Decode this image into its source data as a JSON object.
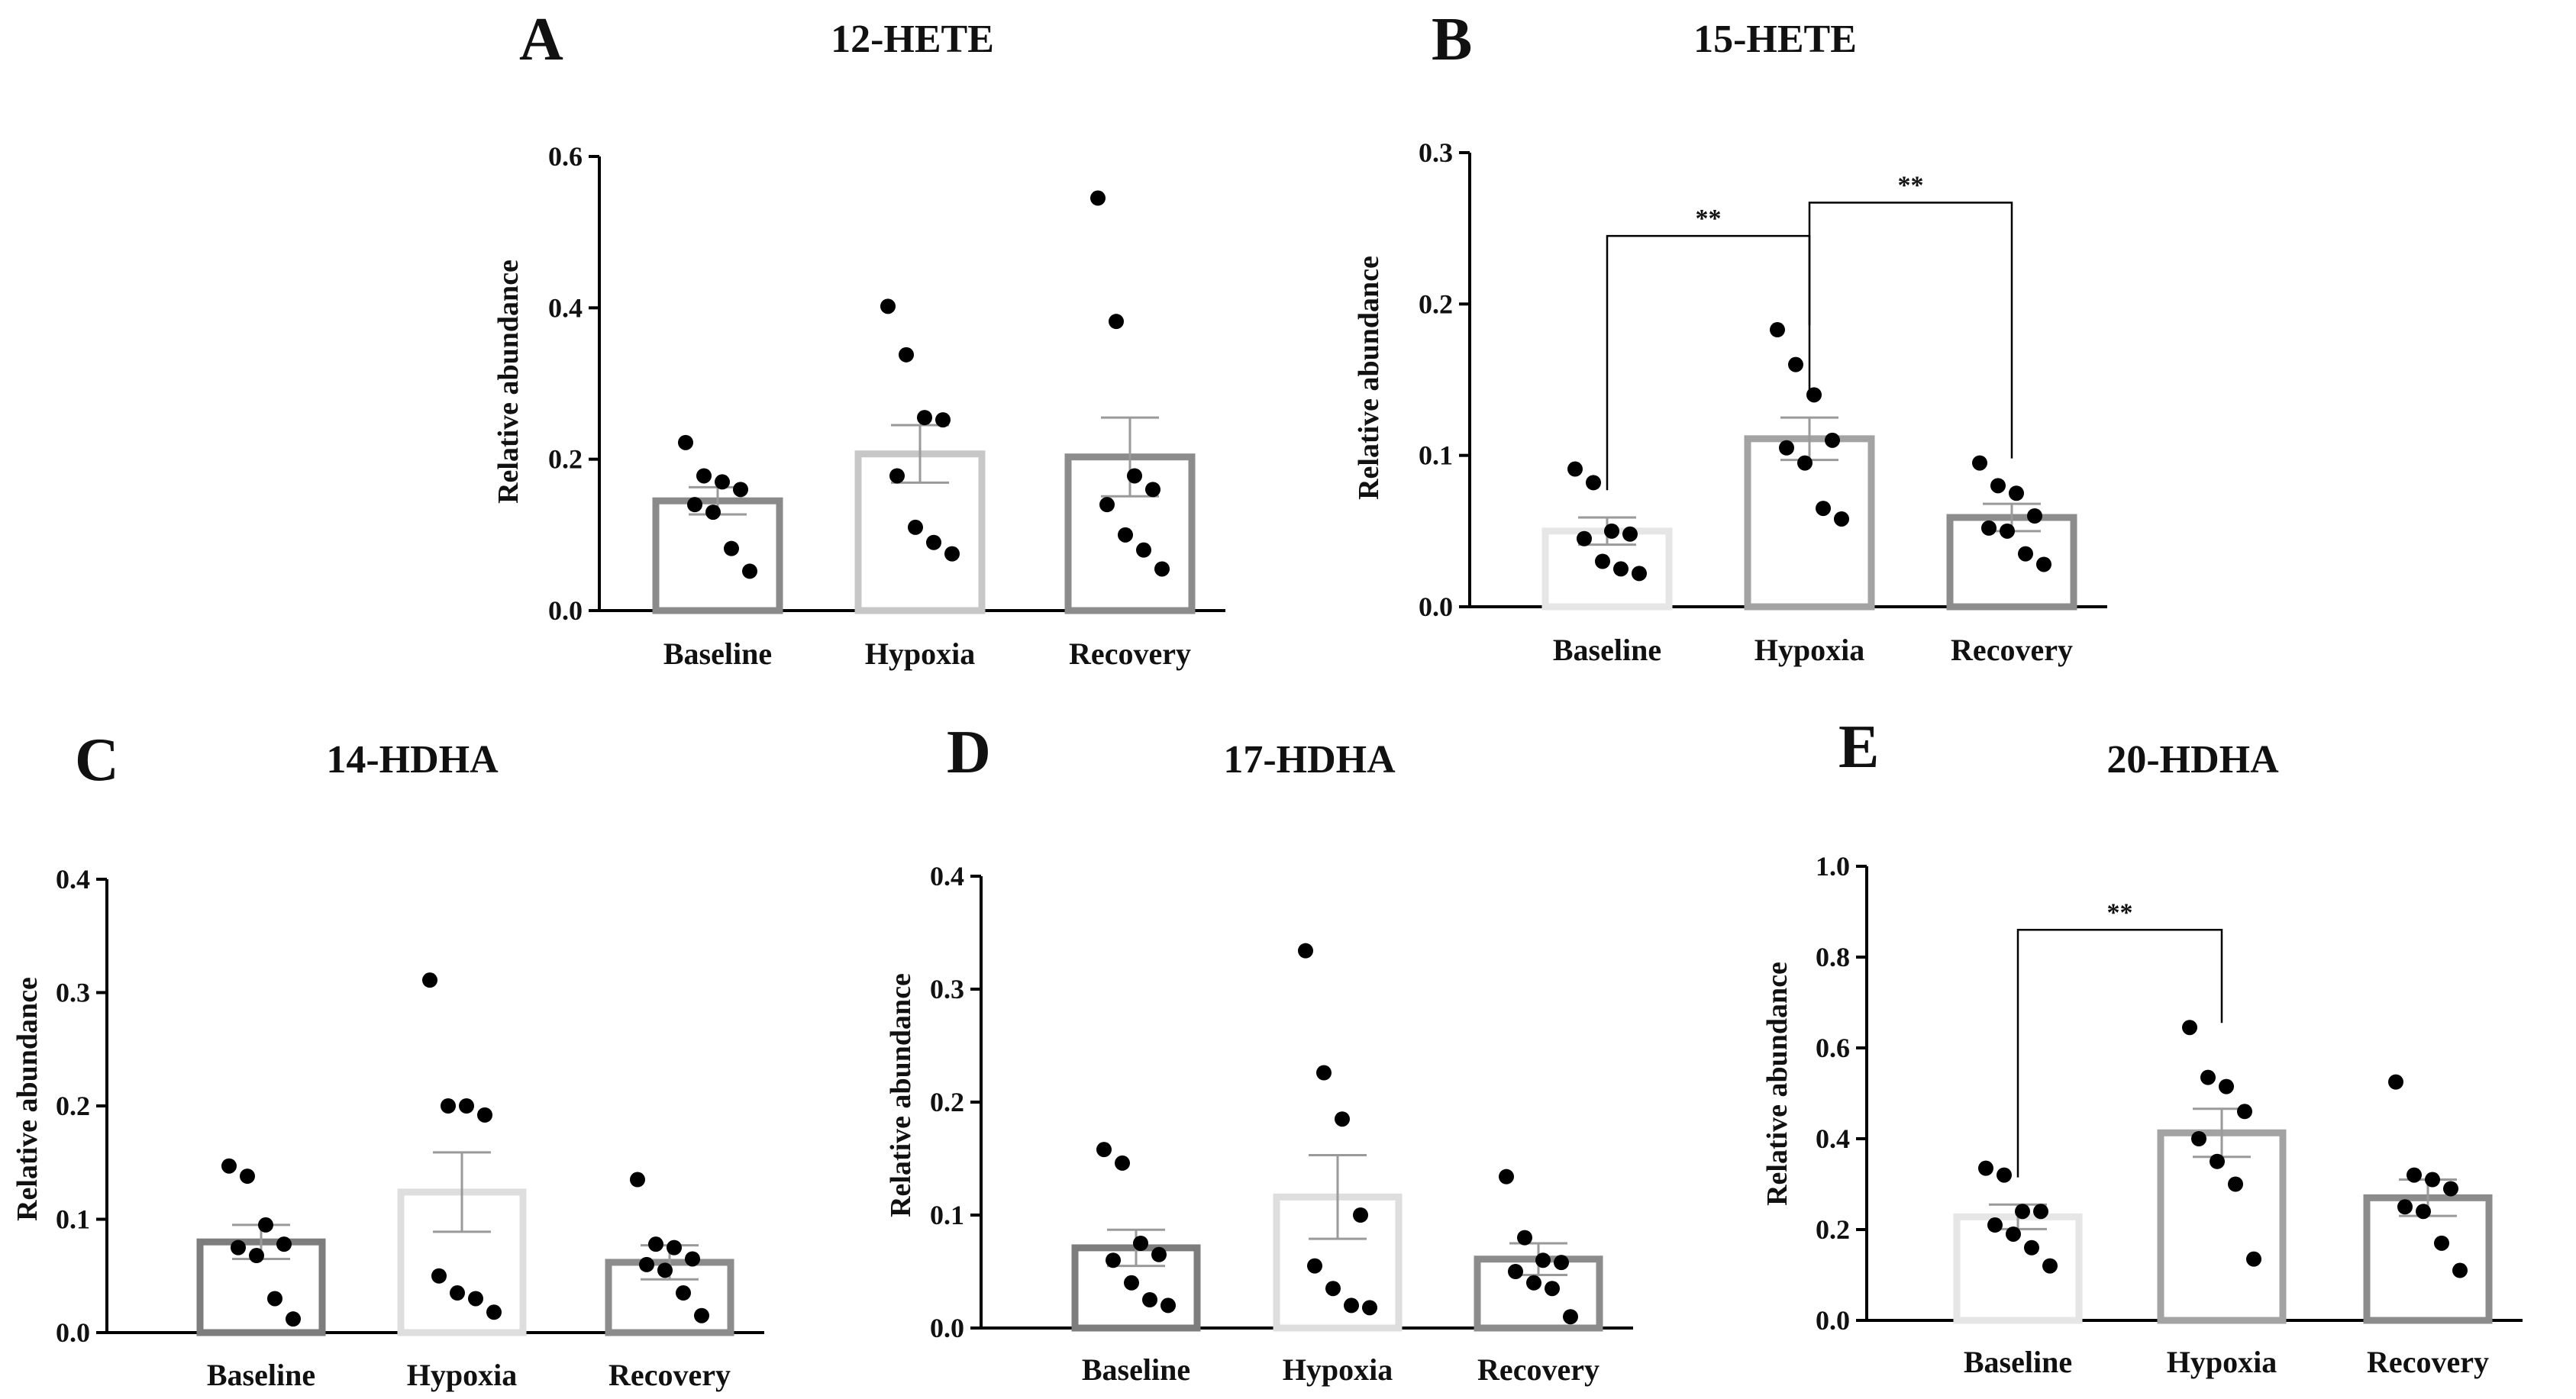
{
  "figure": {
    "colors": {
      "Baseline": "#8a8a8a",
      "Hypoxia": "#c7c7c7",
      "Recovery": "#8c8c8c",
      "point": "#000000",
      "axis": "#000000"
    }
  },
  "chart_data": [
    {
      "id": "A",
      "letter": "A",
      "title": "12-HETE",
      "type": "bar",
      "categories": [
        "Baseline",
        "Hypoxia",
        "Recovery"
      ],
      "ylabel": "Relative abundance",
      "ylim": [
        0,
        0.6
      ],
      "yticks": [
        0.0,
        0.2,
        0.4,
        0.6
      ],
      "ytick_labels": [
        "0.0",
        "0.2",
        "0.4",
        "0.6"
      ],
      "means": [
        0.145,
        0.207,
        0.203
      ],
      "sem": [
        0.018,
        0.038,
        0.052
      ],
      "points": [
        [
          0.222,
          0.178,
          0.17,
          0.16,
          0.14,
          0.13,
          0.082,
          0.052
        ],
        [
          0.402,
          0.338,
          0.255,
          0.252,
          0.178,
          0.11,
          0.09,
          0.075
        ],
        [
          0.545,
          0.382,
          0.178,
          0.16,
          0.14,
          0.1,
          0.08,
          0.055
        ]
      ],
      "bar_colors": [
        "#8a8a8a",
        "#c7c7c7",
        "#8c8c8c"
      ],
      "significance": []
    },
    {
      "id": "B",
      "letter": "B",
      "title": "15-HETE",
      "type": "bar",
      "categories": [
        "Baseline",
        "Hypoxia",
        "Recovery"
      ],
      "ylabel": "Relative abundance",
      "ylim": [
        0,
        0.3
      ],
      "yticks": [
        0.0,
        0.1,
        0.2,
        0.3
      ],
      "ytick_labels": [
        "0.0",
        "0.1",
        "0.2",
        "0.3"
      ],
      "means": [
        0.05,
        0.111,
        0.059
      ],
      "sem": [
        0.009,
        0.014,
        0.009
      ],
      "points": [
        [
          0.091,
          0.082,
          0.05,
          0.048,
          0.045,
          0.03,
          0.025,
          0.022
        ],
        [
          0.183,
          0.16,
          0.14,
          0.11,
          0.105,
          0.095,
          0.065,
          0.058
        ],
        [
          0.095,
          0.08,
          0.075,
          0.06,
          0.052,
          0.05,
          0.035,
          0.028
        ]
      ],
      "bar_colors": [
        "#e6e6e6",
        "#a3a3a3",
        "#8c8c8c"
      ],
      "significance": [
        {
          "from": 0,
          "to": 1,
          "y": 0.245,
          "label": "**"
        },
        {
          "from": 1,
          "to": 2,
          "y": 0.267,
          "label": "**"
        }
      ]
    },
    {
      "id": "C",
      "letter": "C",
      "title": "14-HDHA",
      "type": "bar",
      "categories": [
        "Baseline",
        "Hypoxia",
        "Recovery"
      ],
      "ylabel": "Relative abundance",
      "ylim": [
        0,
        0.4
      ],
      "yticks": [
        0.0,
        0.1,
        0.2,
        0.3,
        0.4
      ],
      "ytick_labels": [
        "0.0",
        "0.1",
        "0.2",
        "0.3",
        "0.4"
      ],
      "means": [
        0.08,
        0.124,
        0.062
      ],
      "sem": [
        0.015,
        0.035,
        0.015
      ],
      "points": [
        [
          0.147,
          0.138,
          0.095,
          0.078,
          0.075,
          0.068,
          0.03,
          0.012
        ],
        [
          0.311,
          0.2,
          0.2,
          0.192,
          0.05,
          0.035,
          0.03,
          0.018
        ],
        [
          0.135,
          0.078,
          0.075,
          0.065,
          0.06,
          0.055,
          0.035,
          0.015
        ]
      ],
      "bar_colors": [
        "#7d7d7d",
        "#dedede",
        "#8c8c8c"
      ],
      "significance": []
    },
    {
      "id": "D",
      "letter": "D",
      "title": "17-HDHA",
      "type": "bar",
      "categories": [
        "Baseline",
        "Hypoxia",
        "Recovery"
      ],
      "ylabel": "Relative abundance",
      "ylim": [
        0,
        0.4
      ],
      "yticks": [
        0.0,
        0.1,
        0.2,
        0.3,
        0.4
      ],
      "ytick_labels": [
        "0.0",
        "0.1",
        "0.2",
        "0.3",
        "0.4"
      ],
      "means": [
        0.071,
        0.116,
        0.061
      ],
      "sem": [
        0.016,
        0.037,
        0.014
      ],
      "points": [
        [
          0.158,
          0.146,
          0.075,
          0.065,
          0.06,
          0.04,
          0.025,
          0.02
        ],
        [
          0.334,
          0.226,
          0.185,
          0.1,
          0.055,
          0.035,
          0.02,
          0.018
        ],
        [
          0.134,
          0.08,
          0.06,
          0.058,
          0.05,
          0.04,
          0.035,
          0.01
        ]
      ],
      "bar_colors": [
        "#7d7d7d",
        "#dedede",
        "#8c8c8c"
      ],
      "significance": []
    },
    {
      "id": "E",
      "letter": "E",
      "title": "20-HDHA",
      "type": "bar",
      "categories": [
        "Baseline",
        "Hypoxia",
        "Recovery"
      ],
      "ylabel": "Relative abundance",
      "ylim": [
        0,
        1.0
      ],
      "yticks": [
        0.0,
        0.2,
        0.4,
        0.6,
        0.8,
        1.0
      ],
      "ytick_labels": [
        "0.0",
        "0.2",
        "0.4",
        "0.6",
        "0.8",
        "1.0"
      ],
      "means": [
        0.228,
        0.413,
        0.27
      ],
      "sem": [
        0.027,
        0.053,
        0.04
      ],
      "points": [
        [
          0.335,
          0.32,
          0.24,
          0.24,
          0.21,
          0.19,
          0.16,
          0.12
        ],
        [
          0.645,
          0.535,
          0.515,
          0.46,
          0.4,
          0.35,
          0.3,
          0.135
        ],
        [
          0.525,
          0.32,
          0.31,
          0.29,
          0.25,
          0.24,
          0.17,
          0.11
        ]
      ],
      "bar_colors": [
        "#e6e6e6",
        "#a3a3a3",
        "#8c8c8c"
      ],
      "significance": [
        {
          "from": 0,
          "to": 1,
          "y": 0.86,
          "label": "**"
        }
      ]
    }
  ]
}
